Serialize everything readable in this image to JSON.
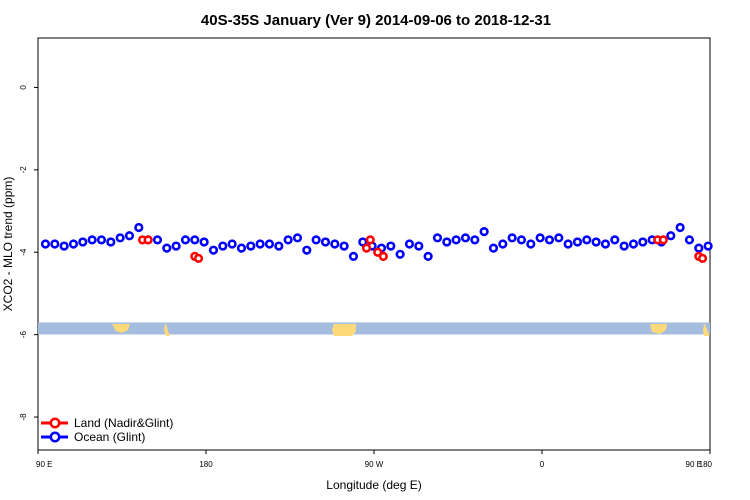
{
  "chart_data": {
    "type": "scatter",
    "title": "40S-35S January (Ver 9)   2014-09-06 to 2018-12-31",
    "xlabel": "Longitude (deg E)",
    "ylabel": "XCO2 - MLO trend (ppm)",
    "xlim": [
      90,
      450
    ],
    "ylim": [
      -8.8,
      1.2
    ],
    "x_ticks": [
      {
        "value": 90,
        "label": "90 E"
      },
      {
        "value": 180,
        "label": "180"
      },
      {
        "value": 270,
        "label": "90 W"
      },
      {
        "value": 360,
        "label": "0"
      },
      {
        "value": 450,
        "label": "90 E"
      }
    ],
    "x_ticks_right": [
      {
        "value": 450,
        "label": "180"
      }
    ],
    "y_ticks": [
      0,
      -2,
      -4,
      -6,
      -8
    ],
    "grid": false,
    "legend_position": "bottom-left",
    "series": [
      {
        "name": "Land (Nadir&Glint)",
        "color": "#ff0000",
        "x": [
          146,
          149,
          174,
          176,
          266,
          268,
          272,
          275,
          422,
          425,
          444,
          446
        ],
        "y": [
          -3.7,
          -3.7,
          -4.1,
          -4.15,
          -3.9,
          -3.7,
          -4.0,
          -4.1,
          -3.7,
          -3.7,
          -4.1,
          -4.15
        ]
      },
      {
        "name": "Ocean (Glint)",
        "color": "#0000ff",
        "x": [
          94,
          99,
          104,
          109,
          114,
          119,
          124,
          129,
          134,
          139,
          144,
          149,
          154,
          159,
          164,
          169,
          174,
          179,
          184,
          189,
          194,
          199,
          204,
          209,
          214,
          219,
          224,
          229,
          234,
          239,
          244,
          249,
          254,
          259,
          264,
          269,
          274,
          279,
          284,
          289,
          294,
          299,
          304,
          309,
          314,
          319,
          324,
          329,
          334,
          339,
          344,
          349,
          354,
          359,
          364,
          369,
          374,
          379,
          384,
          389,
          394,
          399,
          404,
          409,
          414,
          419,
          424,
          429,
          434,
          439,
          444,
          449
        ],
        "y": [
          -3.8,
          -3.8,
          -3.85,
          -3.8,
          -3.75,
          -3.7,
          -3.7,
          -3.75,
          -3.65,
          -3.6,
          -3.4,
          -3.7,
          -3.7,
          -3.9,
          -3.85,
          -3.7,
          -3.7,
          -3.75,
          -3.95,
          -3.85,
          -3.8,
          -3.9,
          -3.85,
          -3.8,
          -3.8,
          -3.85,
          -3.7,
          -3.65,
          -3.95,
          -3.7,
          -3.75,
          -3.8,
          -3.85,
          -4.1,
          -3.75,
          -3.85,
          -3.9,
          -3.85,
          -4.05,
          -3.8,
          -3.85,
          -4.1,
          -3.65,
          -3.75,
          -3.7,
          -3.65,
          -3.7,
          -3.5,
          -3.9,
          -3.8,
          -3.65,
          -3.7,
          -3.8,
          -3.65,
          -3.7,
          -3.65,
          -3.8,
          -3.75,
          -3.7,
          -3.75,
          -3.8,
          -3.7,
          -3.85,
          -3.8,
          -3.75,
          -3.7,
          -3.75,
          -3.6,
          -3.4,
          -3.7,
          -3.9,
          -3.85
        ]
      }
    ],
    "band": {
      "y_center": -5.85,
      "color": "#a4bcde"
    },
    "land_color": "#ffd97a"
  }
}
